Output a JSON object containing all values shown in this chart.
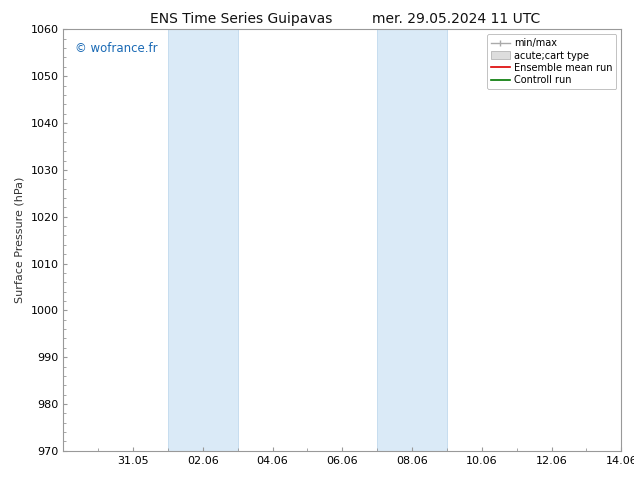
{
  "title_left": "ENS Time Series Guipavas",
  "title_right": "mer. 29.05.2024 11 UTC",
  "ylabel": "Surface Pressure (hPa)",
  "ylim": [
    970,
    1060
  ],
  "yticks": [
    970,
    980,
    990,
    1000,
    1010,
    1020,
    1030,
    1040,
    1050,
    1060
  ],
  "xlim": [
    0,
    16
  ],
  "xtick_labels": [
    "31.05",
    "02.06",
    "04.06",
    "06.06",
    "08.06",
    "10.06",
    "12.06",
    "14.06"
  ],
  "xtick_positions": [
    2,
    4,
    6,
    8,
    10,
    12,
    14,
    16
  ],
  "shaded_bands": [
    {
      "x_start": 3,
      "x_end": 5
    },
    {
      "x_start": 9,
      "x_end": 11
    }
  ],
  "shaded_color": "#daeaf7",
  "shaded_edge_color": "#b8d4eb",
  "watermark": "© wofrance.fr",
  "watermark_color": "#1a6ab5",
  "bg_color": "#ffffff",
  "spine_color": "#999999",
  "tick_color": "#333333",
  "title_fontsize": 10,
  "label_fontsize": 8,
  "tick_fontsize": 8,
  "legend_fontsize": 7
}
